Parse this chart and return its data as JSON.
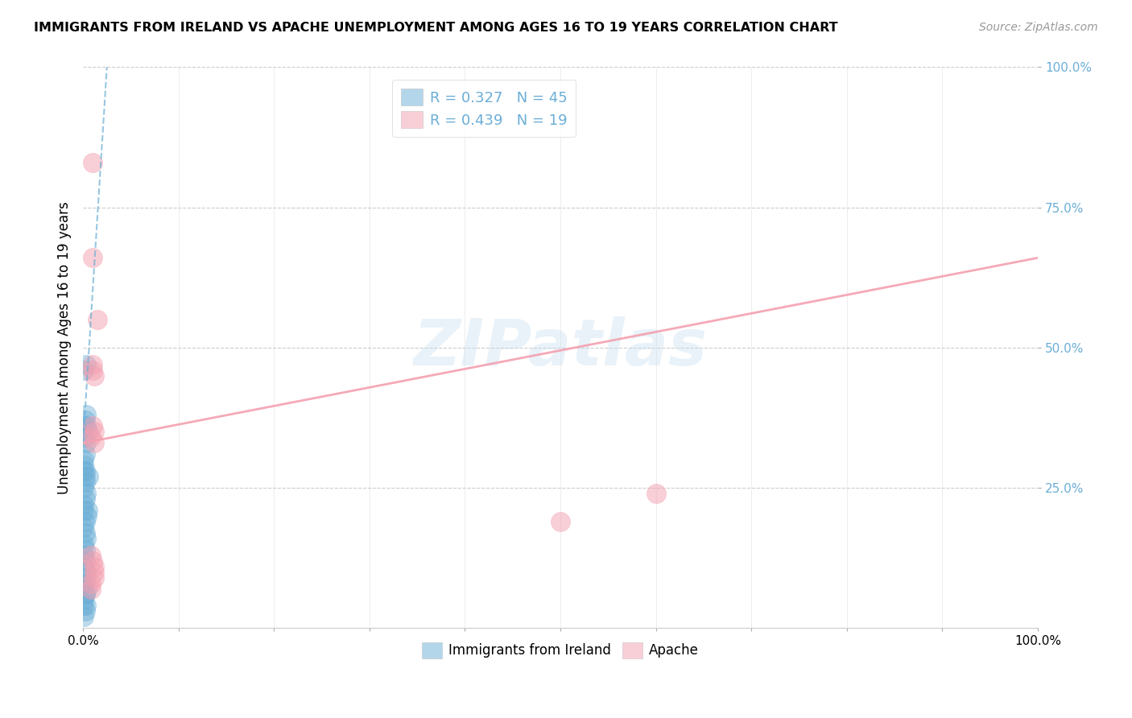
{
  "title": "IMMIGRANTS FROM IRELAND VS APACHE UNEMPLOYMENT AMONG AGES 16 TO 19 YEARS CORRELATION CHART",
  "source": "Source: ZipAtlas.com",
  "ylabel": "Unemployment Among Ages 16 to 19 years",
  "xlim": [
    0,
    1.0
  ],
  "ylim": [
    0,
    1.0
  ],
  "legend_labels": [
    "Immigrants from Ireland",
    "Apache"
  ],
  "r_blue": 0.327,
  "n_blue": 45,
  "r_pink": 0.439,
  "n_pink": 19,
  "blue_color": "#6baed6",
  "pink_color": "#f4a0b0",
  "blue_scatter_x": [
    0.001,
    0.002,
    0.001,
    0.003,
    0.002,
    0.001,
    0.005,
    0.003,
    0.002,
    0.001,
    0.001,
    0.002,
    0.003,
    0.001,
    0.002,
    0.001,
    0.003,
    0.002,
    0.001,
    0.001,
    0.004,
    0.002,
    0.001,
    0.002,
    0.003,
    0.001,
    0.002,
    0.001,
    0.006,
    0.002,
    0.001,
    0.003,
    0.002,
    0.001,
    0.004,
    0.002,
    0.001,
    0.003,
    0.002,
    0.001,
    0.005,
    0.002,
    0.001,
    0.002,
    0.003
  ],
  "blue_scatter_y": [
    0.08,
    0.06,
    0.04,
    0.38,
    0.37,
    0.36,
    0.35,
    0.36,
    0.34,
    0.3,
    0.28,
    0.27,
    0.47,
    0.46,
    0.26,
    0.25,
    0.24,
    0.23,
    0.22,
    0.21,
    0.2,
    0.19,
    0.18,
    0.17,
    0.16,
    0.15,
    0.14,
    0.13,
    0.27,
    0.12,
    0.11,
    0.1,
    0.09,
    0.08,
    0.07,
    0.06,
    0.05,
    0.04,
    0.03,
    0.02,
    0.21,
    0.28,
    0.29,
    0.31,
    0.33
  ],
  "pink_scatter_x": [
    0.01,
    0.01,
    0.015,
    0.01,
    0.012,
    0.008,
    0.012,
    0.008,
    0.01,
    0.012,
    0.012,
    0.01,
    0.01,
    0.012,
    0.6,
    0.5,
    0.012,
    0.008,
    0.008
  ],
  "pink_scatter_y": [
    0.83,
    0.66,
    0.55,
    0.36,
    0.35,
    0.34,
    0.33,
    0.13,
    0.12,
    0.11,
    0.1,
    0.47,
    0.46,
    0.45,
    0.24,
    0.19,
    0.09,
    0.08,
    0.07
  ],
  "blue_trend_x": [
    0.0,
    0.025
  ],
  "blue_trend_y": [
    0.33,
    1.0
  ],
  "pink_trend_x": [
    0.0,
    1.0
  ],
  "pink_trend_y": [
    0.33,
    0.66
  ],
  "watermark": "ZIPatlas",
  "background_color": "#ffffff",
  "grid_color": "#cccccc"
}
